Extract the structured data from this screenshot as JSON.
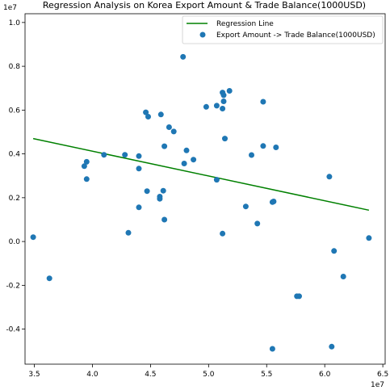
{
  "chart_data": {
    "type": "scatter",
    "title": "Regression Analysis on Korea Export Amount & Trade Balance(1000USD)",
    "xlabel": "",
    "ylabel": "",
    "x_offset_label": "1e7",
    "y_offset_label": "1e7",
    "xlim": [
      3.42,
      6.52
    ],
    "ylim": [
      -0.56,
      1.04
    ],
    "x_ticks": [
      3.5,
      4.0,
      4.5,
      5.0,
      5.5,
      6.0,
      6.5
    ],
    "x_tick_labels": [
      "3.5",
      "4.0",
      "4.5",
      "5.0",
      "5.5",
      "6.0",
      "6.5"
    ],
    "y_ticks": [
      -0.4,
      -0.2,
      0.0,
      0.2,
      0.4,
      0.6,
      0.8,
      1.0
    ],
    "y_tick_labels": [
      "-0.4",
      "-0.2",
      "0.0",
      "0.2",
      "0.4",
      "0.6",
      "0.8",
      "1.0"
    ],
    "grid": false,
    "legend_position": "top-right",
    "series": [
      {
        "name": "Regression Line",
        "kind": "line",
        "color": "#008000",
        "points": [
          [
            3.49,
            0.47
          ],
          [
            6.38,
            0.143
          ]
        ]
      },
      {
        "name": "Export Amount -> Trade Balance(1000USD)",
        "kind": "scatter",
        "color": "#1f77b4",
        "points": [
          [
            3.49,
            0.02
          ],
          [
            3.63,
            -0.168
          ],
          [
            3.93,
            0.344
          ],
          [
            3.95,
            0.364
          ],
          [
            3.95,
            0.285
          ],
          [
            4.1,
            0.396
          ],
          [
            4.28,
            0.396
          ],
          [
            4.31,
            0.04
          ],
          [
            4.4,
            0.39
          ],
          [
            4.4,
            0.333
          ],
          [
            4.4,
            0.156
          ],
          [
            4.46,
            0.59
          ],
          [
            4.47,
            0.23
          ],
          [
            4.48,
            0.57
          ],
          [
            4.58,
            0.205
          ],
          [
            4.58,
            0.195
          ],
          [
            4.59,
            0.58
          ],
          [
            4.61,
            0.232
          ],
          [
            4.62,
            0.435
          ],
          [
            4.62,
            0.1
          ],
          [
            4.66,
            0.522
          ],
          [
            4.7,
            0.502
          ],
          [
            4.78,
            0.843
          ],
          [
            4.79,
            0.356
          ],
          [
            4.81,
            0.416
          ],
          [
            4.87,
            0.374
          ],
          [
            4.98,
            0.615
          ],
          [
            5.07,
            0.62
          ],
          [
            5.07,
            0.282
          ],
          [
            5.12,
            0.607
          ],
          [
            5.12,
            0.68
          ],
          [
            5.13,
            0.668
          ],
          [
            5.13,
            0.64
          ],
          [
            5.14,
            0.47
          ],
          [
            5.12,
            0.036
          ],
          [
            5.18,
            0.688
          ],
          [
            5.32,
            0.16
          ],
          [
            5.37,
            0.395
          ],
          [
            5.42,
            0.082
          ],
          [
            5.47,
            0.638
          ],
          [
            5.47,
            0.436
          ],
          [
            5.55,
            0.18
          ],
          [
            5.56,
            0.183
          ],
          [
            5.58,
            0.43
          ],
          [
            5.55,
            -0.49
          ],
          [
            5.76,
            -0.25
          ],
          [
            5.78,
            -0.25
          ],
          [
            6.04,
            0.296
          ],
          [
            6.06,
            -0.48
          ],
          [
            6.08,
            -0.043
          ],
          [
            6.16,
            -0.16
          ],
          [
            6.38,
            0.016
          ]
        ]
      }
    ]
  }
}
